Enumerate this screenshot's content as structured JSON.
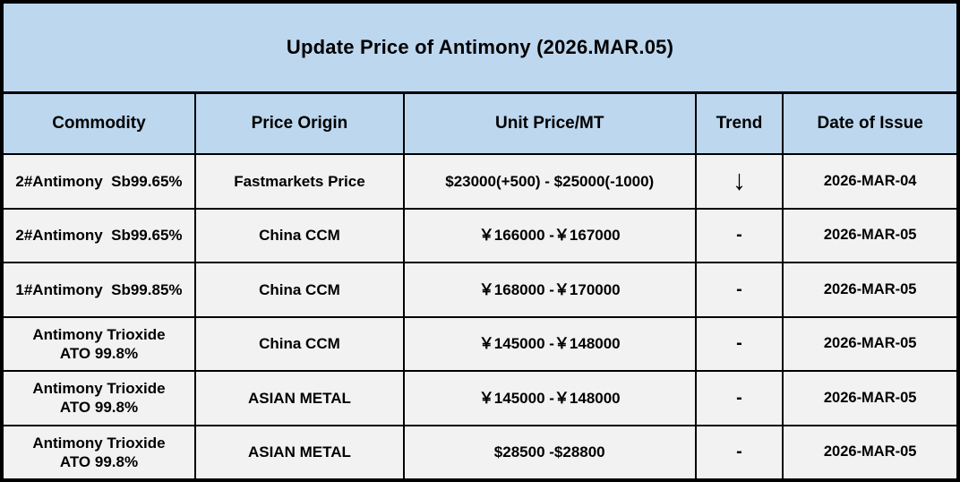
{
  "title": "Update Price of Antimony (2026.MAR.05)",
  "columns": {
    "commodity": "Commodity",
    "origin": "Price Origin",
    "price": "Unit Price/MT",
    "trend": "Trend",
    "date": "Date of Issue"
  },
  "rows": [
    {
      "commodity": "2#Antimony  Sb99.65%",
      "origin": "Fastmarkets Price",
      "price": "$23000(+500) - $25000(-1000)",
      "trend": "↓",
      "trend_icon": "arrow-down-icon",
      "date": "2026-MAR-04"
    },
    {
      "commodity": "2#Antimony  Sb99.65%",
      "origin": "China CCM",
      "price": "￥166000 -￥167000",
      "trend": "-",
      "trend_icon": "dash",
      "date": "2026-MAR-05"
    },
    {
      "commodity": "1#Antimony  Sb99.85%",
      "origin": "China CCM",
      "price": "￥168000 -￥170000",
      "trend": "-",
      "trend_icon": "dash",
      "date": "2026-MAR-05"
    },
    {
      "commodity": "Antimony Trioxide\nATO 99.8%",
      "origin": "China CCM",
      "price": "￥145000 -￥148000",
      "trend": "-",
      "trend_icon": "dash",
      "date": "2026-MAR-05"
    },
    {
      "commodity": "Antimony Trioxide\nATO 99.8%",
      "origin": "ASIAN METAL",
      "price": "￥145000 -￥148000",
      "trend": "-",
      "trend_icon": "dash",
      "date": "2026-MAR-05"
    },
    {
      "commodity": "Antimony Trioxide\nATO 99.8%",
      "origin": "ASIAN METAL",
      "price": "$28500 -$28800",
      "trend": "-",
      "trend_icon": "dash",
      "date": "2026-MAR-05"
    }
  ],
  "colors": {
    "header_bg": "#BDD7EE",
    "row_bg": "#F2F2F2",
    "border": "#000000",
    "text": "#000000"
  }
}
